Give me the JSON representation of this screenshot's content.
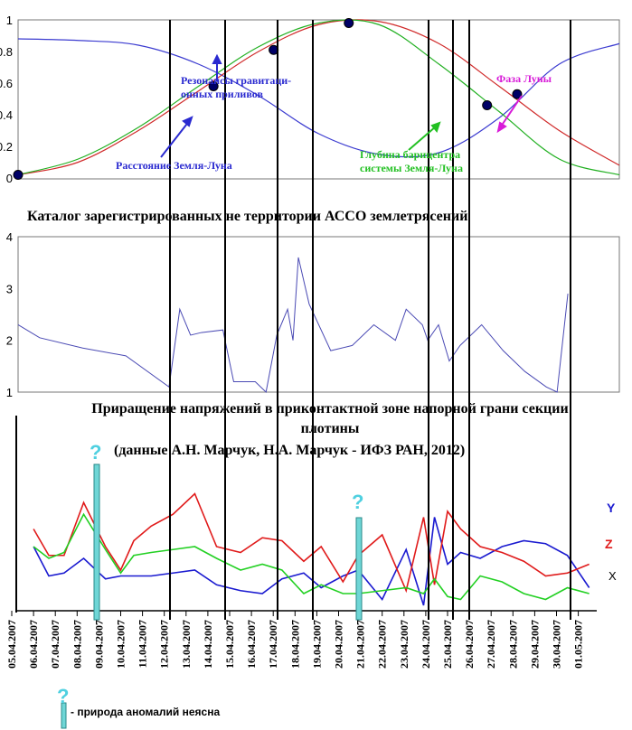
{
  "chart_data": [
    {
      "type": "line",
      "title": "",
      "ylim": [
        0,
        1
      ],
      "y_ticks": [
        "0",
        "0.2",
        "0.4",
        "0.6",
        "0.8",
        "1"
      ],
      "series": [
        {
          "name": "Расстояние Земля-Луна",
          "color": "#3b3bd0",
          "x": [
            0,
            0.1,
            0.2,
            0.3,
            0.4,
            0.5,
            0.6,
            0.7,
            0.8,
            0.9,
            1.0
          ],
          "values": [
            0.88,
            0.87,
            0.84,
            0.72,
            0.52,
            0.28,
            0.15,
            0.16,
            0.38,
            0.72,
            0.85
          ]
        },
        {
          "name": "Фаза Луны",
          "color": "#d02a2a",
          "x": [
            0,
            0.1,
            0.2,
            0.3,
            0.4,
            0.5,
            0.6,
            0.7,
            0.8,
            0.9,
            1.0
          ],
          "values": [
            0.02,
            0.1,
            0.3,
            0.55,
            0.8,
            0.97,
            0.99,
            0.85,
            0.58,
            0.3,
            0.08
          ]
        },
        {
          "name": "Глубина барицентра системы Земля-Луна",
          "color": "#22b022",
          "x": [
            0,
            0.1,
            0.2,
            0.3,
            0.4,
            0.5,
            0.6,
            0.7,
            0.8,
            0.9,
            1.0
          ],
          "values": [
            0.02,
            0.12,
            0.32,
            0.58,
            0.83,
            0.98,
            0.97,
            0.72,
            0.42,
            0.12,
            0.02
          ]
        }
      ],
      "markers": [
        [
          0,
          0.02
        ],
        [
          0.325,
          0.58
        ],
        [
          0.425,
          0.81
        ],
        [
          0.55,
          0.98
        ],
        [
          0.78,
          0.46
        ],
        [
          0.83,
          0.53
        ]
      ],
      "annotations": {
        "resonance": "Резонансы гравитаци-\nонных приливов",
        "distance": "Расстояние Земля-Луна",
        "phase": "Фаза Луны",
        "barycenter": "Глубина барицентра\nсистемы Земля-Луна"
      }
    },
    {
      "type": "line",
      "title": "Каталог зарегистрированных не территории АССО землетрясений",
      "ylim": [
        1,
        4
      ],
      "y_ticks": [
        "1",
        "2",
        "3",
        "4"
      ],
      "x_unit": "date",
      "series": [
        {
          "name": "",
          "color": "#4a4ab4",
          "x": [
            "2007-04-05",
            "2007-04-06",
            "2007-04-08",
            "2007-04-10",
            "2007-04-12",
            "2007-04-12 12:00",
            "2007-04-13",
            "2007-04-13 12:00",
            "2007-04-14 12:00",
            "2007-04-15",
            "2007-04-16",
            "2007-04-16 12:00",
            "2007-04-17",
            "2007-04-17 12:00",
            "2007-04-17 18:00",
            "2007-04-18",
            "2007-04-18 12:00",
            "2007-04-19 12:00",
            "2007-04-20 12:00",
            "2007-04-21 12:00",
            "2007-04-22 12:00",
            "2007-04-23",
            "2007-04-23 18:00",
            "2007-04-24",
            "2007-04-24 12:00",
            "2007-04-25",
            "2007-04-25 12:00",
            "2007-04-26 12:00",
            "2007-04-27 12:00",
            "2007-04-28 12:00",
            "2007-04-29 12:00",
            "2007-04-30",
            "2007-04-30 12:00"
          ],
          "values": [
            2.3,
            2.05,
            1.85,
            1.7,
            1.1,
            2.6,
            2.1,
            2.15,
            2.2,
            1.2,
            1.2,
            1.0,
            2.1,
            2.6,
            2.0,
            3.6,
            2.7,
            1.8,
            1.9,
            2.3,
            2.0,
            2.6,
            2.3,
            2.0,
            2.3,
            1.6,
            1.9,
            2.3,
            1.8,
            1.4,
            1.1,
            1.0,
            2.9
          ]
        }
      ]
    },
    {
      "type": "line",
      "title": "Приращение напряжений в приконтактной зоне напорной грани секции плотины",
      "subtitle": "(данные А.Н. Марчук, Н.А. Марчук - ИФЗ РАН, 2012)",
      "x_unit": "date",
      "categories": [
        "05.04.2007",
        "06.04.2007",
        "07.04.2007",
        "08.04.2007",
        "09.04.2007",
        "10.04.2007",
        "11.04.2007",
        "12.04.2007",
        "13.04.2007",
        "14.04.2007",
        "15.04.2007",
        "16.04.2007",
        "17.04.2007",
        "18.04.2007",
        "19.04.2007",
        "20.04.2007",
        "21.04.2007",
        "22.04.2007",
        "23.04.2007",
        "24.04.2007",
        "25.04.2007",
        "26.04.2007",
        "27.04.2007",
        "28.04.2007",
        "29.04.2007",
        "30.04.2007",
        "01.05.2007"
      ],
      "series": [
        {
          "name": "Y",
          "color": "#1a1ad0",
          "x": [
            1,
            1.7,
            2.4,
            3.3,
            4.3,
            5.0,
            5.6,
            6.4,
            7.4,
            8.4,
            9.4,
            10.5,
            11.5,
            12.4,
            13.4,
            14.2,
            15.2,
            15.9,
            17.0,
            18.1,
            18.9,
            19.4,
            20.0,
            20.6,
            21.5,
            22.5,
            23.5,
            24.5,
            25.5,
            26.5
          ],
          "values": [
            1.0,
            0.5,
            0.55,
            0.8,
            0.45,
            0.5,
            0.5,
            0.5,
            0.55,
            0.6,
            0.35,
            0.25,
            0.2,
            0.45,
            0.55,
            0.3,
            0.5,
            0.6,
            0.1,
            0.95,
            0.0,
            1.5,
            0.7,
            0.9,
            0.8,
            1.0,
            1.1,
            1.05,
            0.85,
            0.3
          ]
        },
        {
          "name": "Z",
          "color": "#e01a1a",
          "x": [
            1,
            1.7,
            2.4,
            3.3,
            4.3,
            5.0,
            5.6,
            6.4,
            7.4,
            8.4,
            9.4,
            10.5,
            11.5,
            12.4,
            13.4,
            14.2,
            15.2,
            15.9,
            17.0,
            18.1,
            18.9,
            19.4,
            20.0,
            20.6,
            21.5,
            22.5,
            23.5,
            24.5,
            25.5,
            26.5
          ],
          "values": [
            1.3,
            0.85,
            0.85,
            1.75,
            1.0,
            0.6,
            1.1,
            1.35,
            1.55,
            1.9,
            1.0,
            0.9,
            1.15,
            1.1,
            0.75,
            1.0,
            0.4,
            0.85,
            1.2,
            0.25,
            1.5,
            0.35,
            1.6,
            1.3,
            1.0,
            0.9,
            0.75,
            0.5,
            0.55,
            0.7
          ]
        },
        {
          "name": "X",
          "color": "#22d022",
          "x": [
            1,
            1.7,
            2.4,
            3.3,
            4.3,
            5.0,
            5.6,
            6.4,
            7.4,
            8.4,
            9.4,
            10.5,
            11.5,
            12.4,
            13.4,
            14.2,
            15.2,
            15.9,
            17.0,
            18.1,
            18.9,
            19.4,
            20.0,
            20.6,
            21.5,
            22.5,
            23.5,
            24.5,
            25.5,
            26.5
          ],
          "values": [
            1.0,
            0.8,
            0.9,
            1.55,
            0.95,
            0.55,
            0.85,
            0.9,
            0.95,
            1.0,
            0.8,
            0.6,
            0.7,
            0.6,
            0.2,
            0.35,
            0.2,
            0.2,
            0.25,
            0.3,
            0.2,
            0.45,
            0.15,
            0.1,
            0.5,
            0.4,
            0.2,
            0.1,
            0.3,
            0.2
          ]
        }
      ],
      "legend_placement": "right",
      "question_mark": "?",
      "footnote": "- природа аномалий неясна"
    }
  ]
}
